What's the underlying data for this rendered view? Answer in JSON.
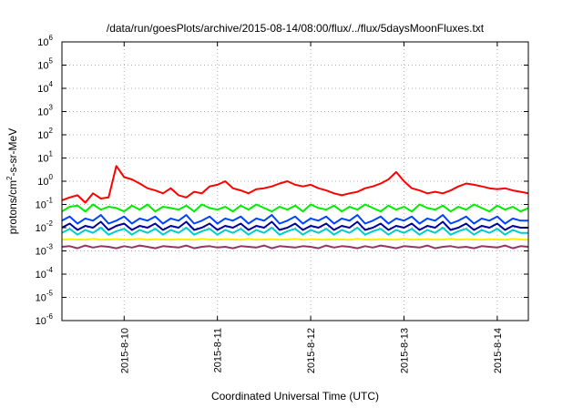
{
  "chart_data": {
    "type": "line",
    "title": "/data/run/goesPlots/archive/2015-08-14/08:00/flux/../flux/5daysMoonFluxes.txt",
    "xlabel": "Coordinated Universal Time (UTC)",
    "ylabel": {
      "before": "protons/cm",
      "superscript": "2",
      "after": "-s-sr-MeV"
    },
    "yscale": "log",
    "ylim": [
      -6,
      6
    ],
    "y_ticks": [
      {
        "base": "10",
        "exp": "-6",
        "value": -6
      },
      {
        "base": "10",
        "exp": "-5",
        "value": -5
      },
      {
        "base": "10",
        "exp": "-4",
        "value": -4
      },
      {
        "base": "10",
        "exp": "-3",
        "value": -3
      },
      {
        "base": "10",
        "exp": "-2",
        "value": -2
      },
      {
        "base": "10",
        "exp": "-1",
        "value": -1
      },
      {
        "base": "10",
        "exp": "0",
        "value": 0
      },
      {
        "base": "10",
        "exp": "1",
        "value": 1
      },
      {
        "base": "10",
        "exp": "2",
        "value": 2
      },
      {
        "base": "10",
        "exp": "3",
        "value": 3
      },
      {
        "base": "10",
        "exp": "4",
        "value": 4
      },
      {
        "base": "10",
        "exp": "5",
        "value": 5
      },
      {
        "base": "10",
        "exp": "6",
        "value": 6
      }
    ],
    "xlim": [
      "2015-08-09T08:00",
      "2015-08-14T08:00"
    ],
    "x_ticks": [
      {
        "label": "2015-8-10",
        "value": "2015-08-10T00:00"
      },
      {
        "label": "2015-8-11",
        "value": "2015-08-11T00:00"
      },
      {
        "label": "2015-8-12",
        "value": "2015-08-12T00:00"
      },
      {
        "label": "2015-8-13",
        "value": "2015-08-13T00:00"
      },
      {
        "label": "2015-8-14",
        "value": "2015-08-14T00:00"
      }
    ],
    "grid": true,
    "x": [
      "2015-08-09T08:00",
      "2015-08-09T10:00",
      "2015-08-09T12:00",
      "2015-08-09T14:00",
      "2015-08-09T16:00",
      "2015-08-09T18:00",
      "2015-08-09T20:00",
      "2015-08-09T22:00",
      "2015-08-10T00:00",
      "2015-08-10T02:00",
      "2015-08-10T04:00",
      "2015-08-10T06:00",
      "2015-08-10T08:00",
      "2015-08-10T10:00",
      "2015-08-10T12:00",
      "2015-08-10T14:00",
      "2015-08-10T16:00",
      "2015-08-10T18:00",
      "2015-08-10T20:00",
      "2015-08-10T22:00",
      "2015-08-11T00:00",
      "2015-08-11T02:00",
      "2015-08-11T04:00",
      "2015-08-11T06:00",
      "2015-08-11T08:00",
      "2015-08-11T10:00",
      "2015-08-11T12:00",
      "2015-08-11T14:00",
      "2015-08-11T16:00",
      "2015-08-11T18:00",
      "2015-08-11T20:00",
      "2015-08-11T22:00",
      "2015-08-12T00:00",
      "2015-08-12T02:00",
      "2015-08-12T04:00",
      "2015-08-12T06:00",
      "2015-08-12T08:00",
      "2015-08-12T10:00",
      "2015-08-12T12:00",
      "2015-08-12T14:00",
      "2015-08-12T16:00",
      "2015-08-12T18:00",
      "2015-08-12T20:00",
      "2015-08-12T22:00",
      "2015-08-13T00:00",
      "2015-08-13T02:00",
      "2015-08-13T04:00",
      "2015-08-13T06:00",
      "2015-08-13T08:00",
      "2015-08-13T10:00",
      "2015-08-13T12:00",
      "2015-08-13T14:00",
      "2015-08-13T16:00",
      "2015-08-13T18:00",
      "2015-08-13T20:00",
      "2015-08-13T22:00",
      "2015-08-14T00:00",
      "2015-08-14T02:00",
      "2015-08-14T04:00",
      "2015-08-14T06:00",
      "2015-08-14T08:00"
    ],
    "series": [
      {
        "color": "#ff0000",
        "values": [
          0.15,
          0.2,
          0.25,
          0.12,
          0.3,
          0.18,
          0.2,
          4.5,
          1.5,
          1.2,
          0.8,
          0.5,
          0.4,
          0.3,
          0.5,
          0.25,
          0.2,
          0.35,
          0.3,
          0.6,
          0.7,
          1.0,
          0.5,
          0.4,
          0.3,
          0.45,
          0.5,
          0.6,
          0.8,
          1.0,
          0.7,
          0.6,
          0.7,
          0.5,
          0.4,
          0.3,
          0.25,
          0.3,
          0.35,
          0.5,
          0.6,
          0.8,
          1.2,
          2.5,
          1.0,
          0.5,
          0.4,
          0.3,
          0.35,
          0.3,
          0.4,
          0.6,
          0.8,
          0.7,
          0.6,
          0.5,
          0.45,
          0.5,
          0.4,
          0.35,
          0.3
        ]
      },
      {
        "color": "#00ee00",
        "values": [
          0.05,
          0.08,
          0.09,
          0.05,
          0.1,
          0.06,
          0.08,
          0.07,
          0.05,
          0.09,
          0.06,
          0.1,
          0.05,
          0.08,
          0.07,
          0.06,
          0.09,
          0.05,
          0.1,
          0.07,
          0.06,
          0.08,
          0.05,
          0.09,
          0.06,
          0.1,
          0.07,
          0.05,
          0.08,
          0.06,
          0.09,
          0.05,
          0.1,
          0.07,
          0.06,
          0.09,
          0.05,
          0.08,
          0.06,
          0.1,
          0.07,
          0.05,
          0.09,
          0.06,
          0.08,
          0.05,
          0.1,
          0.07,
          0.06,
          0.09,
          0.05,
          0.08,
          0.06,
          0.1,
          0.07,
          0.05,
          0.09,
          0.06,
          0.08,
          0.05,
          0.07
        ]
      },
      {
        "color": "#0044ff",
        "values": [
          0.02,
          0.03,
          0.015,
          0.025,
          0.02,
          0.035,
          0.015,
          0.02,
          0.03,
          0.015,
          0.025,
          0.02,
          0.03,
          0.015,
          0.025,
          0.02,
          0.035,
          0.015,
          0.02,
          0.03,
          0.015,
          0.025,
          0.02,
          0.03,
          0.015,
          0.025,
          0.02,
          0.035,
          0.015,
          0.02,
          0.03,
          0.015,
          0.025,
          0.02,
          0.03,
          0.015,
          0.025,
          0.02,
          0.035,
          0.015,
          0.02,
          0.03,
          0.015,
          0.025,
          0.02,
          0.03,
          0.015,
          0.025,
          0.02,
          0.035,
          0.015,
          0.02,
          0.03,
          0.015,
          0.025,
          0.02,
          0.03,
          0.015,
          0.025,
          0.02,
          0.02
        ]
      },
      {
        "color": "#000099",
        "values": [
          0.01,
          0.015,
          0.008,
          0.012,
          0.01,
          0.018,
          0.008,
          0.012,
          0.015,
          0.008,
          0.012,
          0.01,
          0.015,
          0.008,
          0.012,
          0.01,
          0.018,
          0.008,
          0.01,
          0.015,
          0.008,
          0.012,
          0.01,
          0.015,
          0.008,
          0.012,
          0.01,
          0.018,
          0.008,
          0.01,
          0.015,
          0.008,
          0.012,
          0.01,
          0.015,
          0.008,
          0.012,
          0.01,
          0.018,
          0.008,
          0.01,
          0.015,
          0.008,
          0.012,
          0.01,
          0.015,
          0.008,
          0.012,
          0.01,
          0.018,
          0.008,
          0.01,
          0.015,
          0.008,
          0.012,
          0.01,
          0.015,
          0.008,
          0.012,
          0.01,
          0.01
        ]
      },
      {
        "color": "#00cccc",
        "values": [
          0.006,
          0.009,
          0.005,
          0.008,
          0.006,
          0.01,
          0.005,
          0.007,
          0.009,
          0.005,
          0.008,
          0.006,
          0.009,
          0.005,
          0.008,
          0.006,
          0.01,
          0.005,
          0.007,
          0.009,
          0.005,
          0.008,
          0.006,
          0.009,
          0.005,
          0.008,
          0.006,
          0.01,
          0.005,
          0.007,
          0.009,
          0.005,
          0.008,
          0.006,
          0.009,
          0.005,
          0.008,
          0.006,
          0.01,
          0.005,
          0.007,
          0.009,
          0.005,
          0.008,
          0.006,
          0.009,
          0.005,
          0.008,
          0.006,
          0.01,
          0.005,
          0.007,
          0.009,
          0.005,
          0.008,
          0.006,
          0.009,
          0.005,
          0.008,
          0.006,
          0.006
        ]
      },
      {
        "color": "#ffee00",
        "values": [
          0.003,
          0.0032,
          0.0031,
          0.003,
          0.0033,
          0.003,
          0.0031,
          0.0032,
          0.003,
          0.0031,
          0.0033,
          0.003,
          0.0032,
          0.0031,
          0.003,
          0.0032,
          0.0031,
          0.003,
          0.0033,
          0.0031,
          0.003,
          0.0032,
          0.0031,
          0.003,
          0.0033,
          0.003,
          0.0031,
          0.0032,
          0.003,
          0.0031,
          0.0033,
          0.003,
          0.0032,
          0.0031,
          0.003,
          0.0032,
          0.0031,
          0.003,
          0.0033,
          0.0031,
          0.003,
          0.0032,
          0.0031,
          0.003,
          0.0033,
          0.003,
          0.0031,
          0.0032,
          0.003,
          0.0031,
          0.0033,
          0.003,
          0.0032,
          0.0031,
          0.003,
          0.0032,
          0.0031,
          0.003,
          0.0033,
          0.0031,
          0.003
        ]
      },
      {
        "color": "#993366",
        "values": [
          0.0015,
          0.0016,
          0.0013,
          0.0017,
          0.0014,
          0.0016,
          0.0015,
          0.0013,
          0.0016,
          0.0014,
          0.0017,
          0.0015,
          0.0013,
          0.0016,
          0.0015,
          0.0014,
          0.0017,
          0.0013,
          0.0015,
          0.0016,
          0.0014,
          0.0015,
          0.0013,
          0.0016,
          0.0015,
          0.0014,
          0.0017,
          0.0013,
          0.0016,
          0.0015,
          0.0014,
          0.0016,
          0.0015,
          0.0013,
          0.0017,
          0.0014,
          0.0016,
          0.0015,
          0.0013,
          0.0016,
          0.0014,
          0.0017,
          0.0015,
          0.0013,
          0.0016,
          0.0015,
          0.0014,
          0.0017,
          0.0013,
          0.0015,
          0.0016,
          0.0014,
          0.0015,
          0.0013,
          0.0016,
          0.0015,
          0.0014,
          0.0017,
          0.0013,
          0.0016,
          0.0015
        ]
      }
    ]
  }
}
